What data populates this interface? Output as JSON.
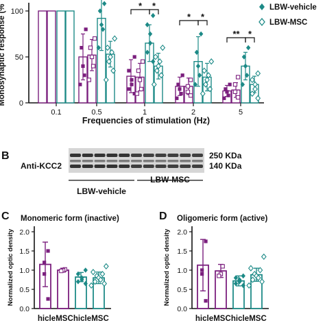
{
  "colors": {
    "lbw_vehicle": "#7b1f7e",
    "lbw_msc": "#1d8a87",
    "axis": "#111111"
  },
  "panel_a": {
    "ylabel": "Monosynaptic response (%",
    "xlabel": "Frequencies of stimulation (Hz)",
    "legend": [
      "LBW-vehicle",
      "LBW-MSC"
    ]
  },
  "panel_b": {
    "letter": "B",
    "antibody": "Anti-KCC2",
    "kda_high": "250 KDa",
    "kda_low": "140 KDa",
    "group_vehicle": "LBW-vehicle",
    "group_msc": "LBW-MSC"
  },
  "panel_c": {
    "letter": "C",
    "title": "Monomeric form (inactive)",
    "ylabel": "Normalized optic density"
  },
  "panel_d": {
    "letter": "D",
    "title": "Oligomeric form (active)",
    "ylabel": "Normalized optic density"
  },
  "chart_data": [
    {
      "type": "bar",
      "title": "",
      "xlabel": "Frequencies of stimulation (Hz)",
      "ylabel": "Monosynaptic response (%",
      "categories": [
        "0.1",
        "0.5",
        "1",
        "2",
        "5"
      ],
      "y_ticks": [
        "0",
        "50",
        "100"
      ],
      "ylim": [
        0,
        105
      ],
      "series": [
        {
          "name": "LBW-vehicle",
          "values": [
            100,
            50,
            29,
            18,
            13
          ],
          "errors": [
            0,
            25,
            18,
            10,
            6
          ],
          "points": [
            [
              100,
              100,
              100
            ],
            [
              80,
              60,
              40,
              30,
              20
            ],
            [
              50,
              35,
              25,
              20,
              15,
              10
            ],
            [
              30,
              20,
              15,
              10,
              5
            ],
            [
              20,
              15,
              12,
              8,
              5
            ]
          ]
        },
        {
          "name": "",
          "values": [
            100,
            52,
            28,
            18,
            14
          ],
          "errors": [
            0,
            17,
            15,
            9,
            8
          ],
          "points": [
            [
              100,
              100,
              100
            ],
            [
              70,
              60,
              50,
              40,
              25
            ],
            [
              45,
              35,
              25,
              15,
              10
            ],
            [
              25,
              18,
              12,
              8
            ],
            [
              28,
              20,
              12,
              6
            ]
          ]
        },
        {
          "name": "",
          "values": [
            100,
            92,
            65,
            45,
            40
          ],
          "errors": [
            0,
            35,
            20,
            27,
            15
          ],
          "points": [
            [
              100,
              100,
              100,
              100
            ],
            [
              108,
              100,
              85,
              80,
              60
            ],
            [
              95,
              85,
              75,
              65,
              55,
              45
            ],
            [
              75,
              55,
              40,
              30,
              20
            ],
            [
              60,
              50,
              40,
              30,
              20
            ]
          ]
        },
        {
          "name": "LBW-MSC",
          "values": [
            100,
            53,
            40,
            28,
            20
          ],
          "errors": [
            0,
            14,
            14,
            15,
            9
          ],
          "points": [
            [
              100,
              100,
              100
            ],
            [
              70,
              60,
              55,
              50,
              45,
              35,
              25
            ],
            [
              60,
              50,
              45,
              40,
              35,
              30,
              20
            ],
            [
              45,
              35,
              30,
              25,
              20,
              15,
              10
            ],
            [
              32,
              25,
              20,
              15,
              10,
              5
            ]
          ]
        }
      ],
      "significance": [
        {
          "category": "1",
          "pairs": [
            [
              "a",
              "c"
            ],
            [
              "c",
              "d"
            ]
          ],
          "labels": [
            "*",
            "*"
          ]
        },
        {
          "category": "2",
          "pairs": [
            [
              "a",
              "c"
            ],
            [
              "c",
              "d"
            ]
          ],
          "labels": [
            "*",
            "*"
          ]
        },
        {
          "category": "5",
          "pairs": [
            [
              "a",
              "c"
            ],
            [
              "c",
              "d"
            ]
          ],
          "labels": [
            "**",
            "*"
          ]
        }
      ]
    },
    {
      "type": "bar",
      "title": "Monomeric form (inactive)",
      "xlabel": "",
      "ylabel": "Normalized optic density",
      "categories": [
        "hicle",
        "MSC",
        "hicle",
        "MSC"
      ],
      "y_ticks": [
        "0.0",
        "0.5",
        "1.0",
        "1.5",
        "2.0"
      ],
      "ylim": [
        0,
        2.0
      ],
      "values": [
        1.15,
        1.0,
        0.82,
        0.8
      ],
      "errors": [
        0.58,
        0.05,
        0.12,
        0.15
      ],
      "points": [
        [
          1.5,
          1.2,
          0.9,
          0.25
        ],
        [
          1.02,
          1.0,
          0.98
        ],
        [
          1.0,
          0.9,
          0.8,
          0.75,
          0.7,
          0.65
        ],
        [
          1.1,
          0.95,
          0.9,
          0.85,
          0.8,
          0.75,
          0.7,
          0.65,
          0.6
        ]
      ]
    },
    {
      "type": "bar",
      "title": "Oligomeric form (active)",
      "xlabel": "",
      "ylabel": "Normalized optic density",
      "categories": [
        "hicle",
        "MSC",
        "hicle",
        "MSC"
      ],
      "y_ticks": [
        "0.0",
        "0.5",
        "1.0",
        "1.5",
        "2.0"
      ],
      "ylim": [
        0,
        2.0
      ],
      "values": [
        1.13,
        0.98,
        0.72,
        0.88
      ],
      "errors": [
        0.67,
        0.17,
        0.13,
        0.17
      ],
      "points": [
        [
          1.75,
          1.0,
          0.9,
          0.2
        ],
        [
          1.1,
          0.9,
          0.85
        ],
        [
          0.85,
          0.8,
          0.75,
          0.7,
          0.65,
          0.6
        ],
        [
          1.35,
          1.05,
          1.0,
          0.9,
          0.85,
          0.8,
          0.75,
          0.7,
          0.6
        ]
      ]
    }
  ]
}
